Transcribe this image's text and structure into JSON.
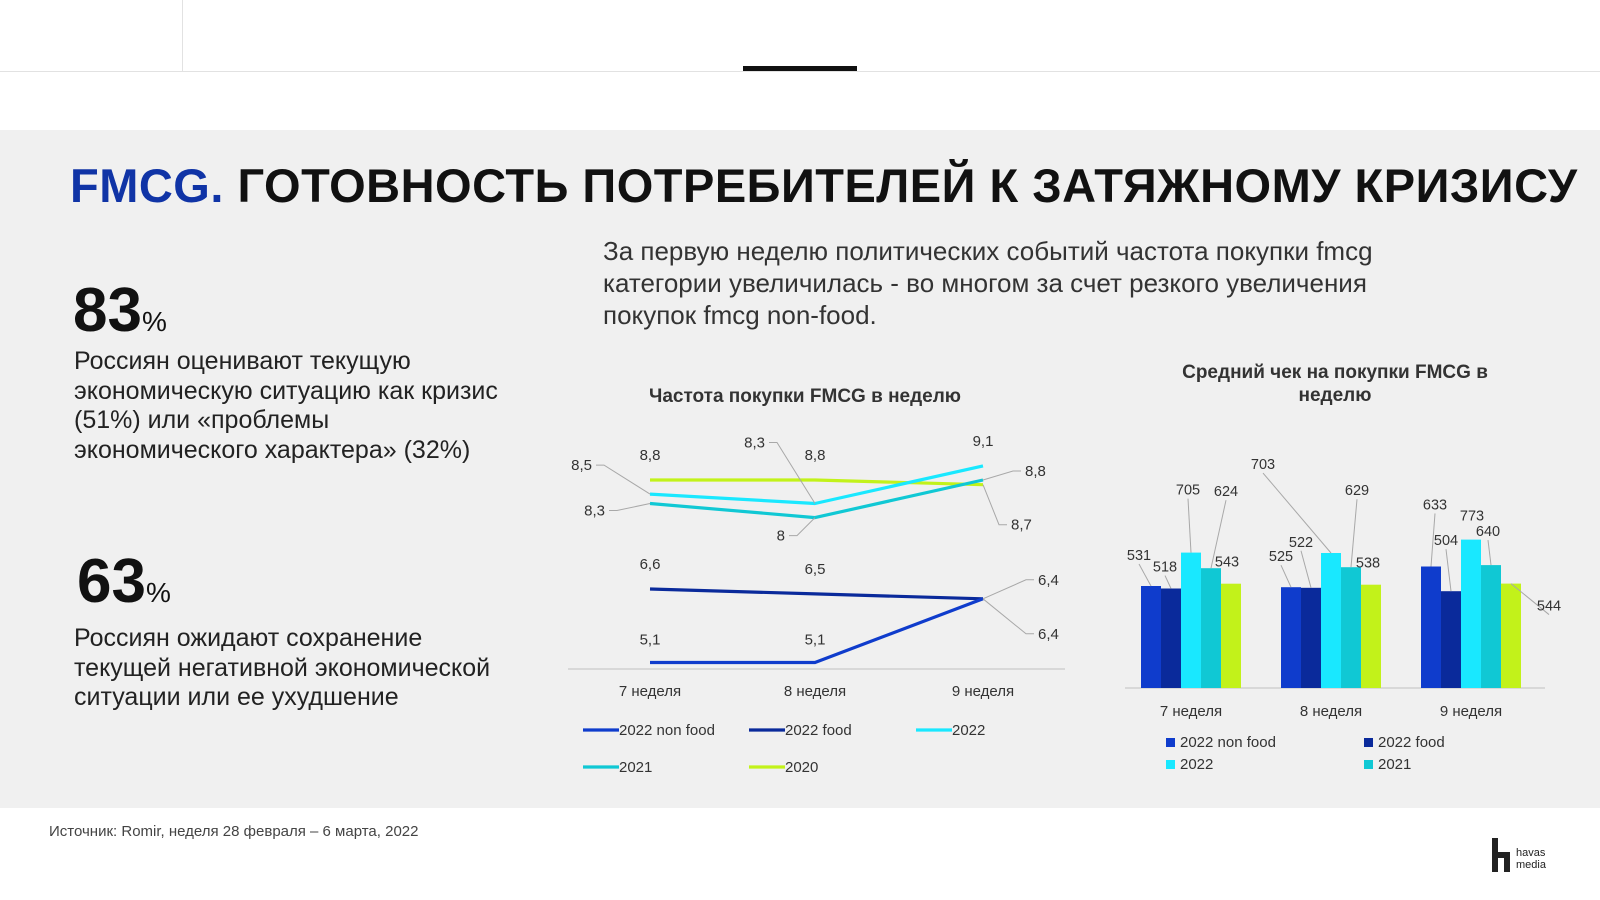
{
  "title": {
    "accent": "FMCG.",
    "rest": "ГОТОВНОСТЬ ПОТРЕБИТЕЛЕЙ К ЗАТЯЖНОМУ КРИЗИСУ"
  },
  "stats": [
    {
      "number": "83",
      "unit": "%",
      "text": "Россиян оценивают текущую экономическую ситуацию как кризис (51%) или «проблемы экономического характера» (32%)"
    },
    {
      "number": "63",
      "unit": "%",
      "text": "Россиян ожидают сохранение текущей негативной экономической ситуации или ее ухудшение"
    }
  ],
  "lead": "За первую неделю политических  событий частота покупки fmcg категории увеличилась - во многом за счет резкого увеличения покупок  fmcg non-food.",
  "source": "Источник: Romir, неделя 28 февраля –  6 марта, 2022",
  "logo": {
    "text": "havas media"
  },
  "colors": {
    "2022 non food": "#0f3ccc",
    "2022 food": "#0a2a9b",
    "2022": "#19e8ff",
    "2021": "#10c8d4",
    "2020": "#c2f21a"
  },
  "chart_data": [
    {
      "type": "line",
      "title": "Частота покупки  FMCG в неделю",
      "categories": [
        "7 неделя",
        "8 неделя",
        "9 неделя"
      ],
      "series": [
        {
          "name": "2022 non food",
          "values": [
            5.1,
            5.1,
            6.4
          ],
          "labels": [
            "5,1",
            "5,1",
            "6,4"
          ]
        },
        {
          "name": "2022 food",
          "values": [
            6.6,
            6.5,
            6.4
          ],
          "labels": [
            "6,6",
            "6,5",
            "6,4"
          ]
        },
        {
          "name": "2022",
          "values": [
            8.5,
            8.3,
            9.1
          ],
          "labels": [
            "8,5",
            "8,3",
            "9,1"
          ]
        },
        {
          "name": "2021",
          "values": [
            8.3,
            8.0,
            8.8
          ],
          "labels": [
            "8,3",
            "8",
            "8,8"
          ]
        },
        {
          "name": "2020",
          "values": [
            8.8,
            8.8,
            8.7
          ],
          "labels": [
            "8,8",
            "8,8",
            "8,7"
          ]
        }
      ],
      "grid": false,
      "legend": "bottom"
    },
    {
      "type": "bar",
      "title": "Средний чек на покупки FMCG в неделю",
      "categories": [
        "7 неделя",
        "8 неделя",
        "9 неделя"
      ],
      "series": [
        {
          "name": "2022 non food",
          "values": [
            531,
            525,
            633
          ]
        },
        {
          "name": "2022 food",
          "values": [
            518,
            522,
            504
          ]
        },
        {
          "name": "2022",
          "values": [
            705,
            703,
            773
          ]
        },
        {
          "name": "2021",
          "values": [
            624,
            629,
            640
          ]
        },
        {
          "name": "2020",
          "values": [
            543,
            538,
            544
          ]
        }
      ],
      "legend_series": [
        "2022 non food",
        "2022 food",
        "2022",
        "2021"
      ],
      "grid": false,
      "legend": "bottom"
    }
  ]
}
